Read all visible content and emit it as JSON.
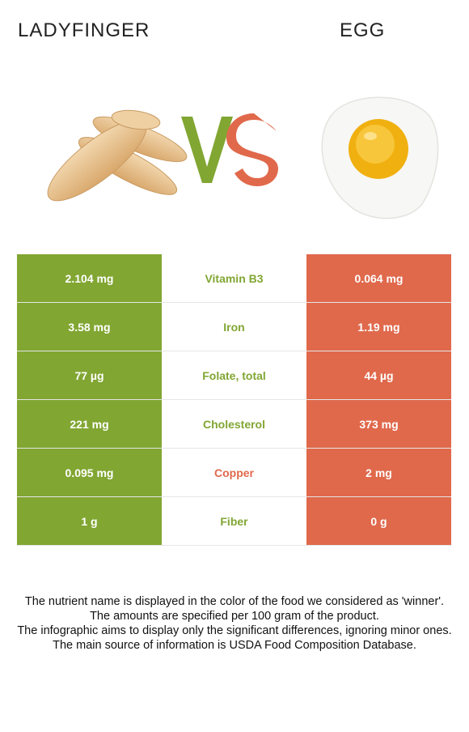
{
  "header": {
    "left_food": "LADYFINGER",
    "right_food": "EGG",
    "vs_text": "VS"
  },
  "colors": {
    "left": "#81a632",
    "right": "#e0694c"
  },
  "rows": [
    {
      "left": "2.104 mg",
      "nutrient": "Vitamin B3",
      "right": "0.064 mg",
      "winner": "left"
    },
    {
      "left": "3.58 mg",
      "nutrient": "Iron",
      "right": "1.19 mg",
      "winner": "left"
    },
    {
      "left": "77 µg",
      "nutrient": "Folate, total",
      "right": "44 µg",
      "winner": "left"
    },
    {
      "left": "221 mg",
      "nutrient": "Cholesterol",
      "right": "373 mg",
      "winner": "left"
    },
    {
      "left": "0.095 mg",
      "nutrient": "Copper",
      "right": "2 mg",
      "winner": "right"
    },
    {
      "left": "1 g",
      "nutrient": "Fiber",
      "right": "0 g",
      "winner": "left"
    }
  ],
  "footer": {
    "line1": "The nutrient name is displayed in the color of the food we considered as 'winner'.",
    "line2": "The amounts are specified per 100 gram of the product.",
    "line3": "The infographic aims to display only the significant differences, ignoring minor ones.",
    "line4": "The main source of information is USDA Food Composition Database."
  }
}
